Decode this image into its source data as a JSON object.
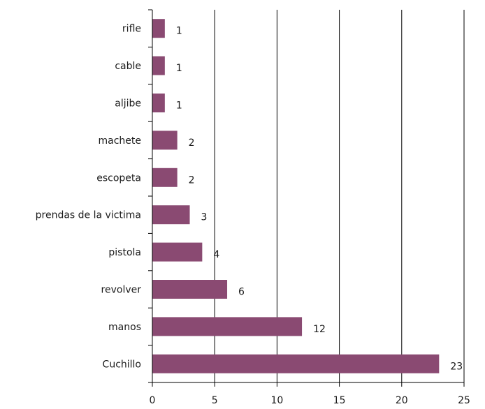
{
  "chart_data": {
    "type": "bar",
    "orientation": "horizontal",
    "categories": [
      "rifle",
      "cable",
      "aljibe",
      "machete",
      "escopeta",
      "prendas de la victima",
      "pistola",
      "revolver",
      "manos",
      "Cuchillo"
    ],
    "values": [
      1,
      1,
      1,
      2,
      2,
      3,
      4,
      6,
      12,
      23
    ],
    "data_labels": [
      "1",
      "1",
      "1",
      "2",
      "2",
      "3",
      "4",
      "6",
      "12",
      "23"
    ],
    "xlim": [
      0,
      25
    ],
    "xticks": [
      0,
      5,
      10,
      15,
      20,
      25
    ],
    "xtick_labels": [
      "0",
      "5",
      "10",
      "15",
      "20",
      "25"
    ],
    "grid": "vertical",
    "legend": "none",
    "bar_color": "#8a4a72"
  }
}
